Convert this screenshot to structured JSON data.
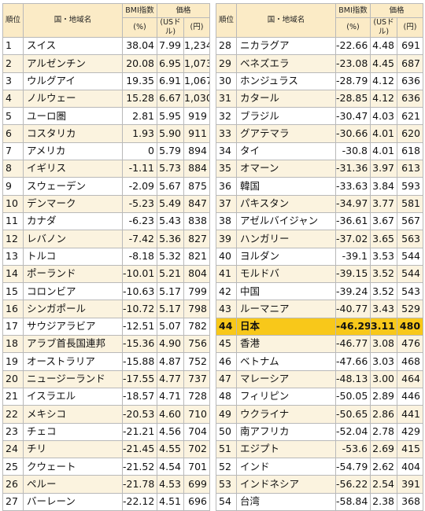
{
  "header": {
    "rank": "順位",
    "country": "国・地域名",
    "bmi": "BMI指数",
    "bmi_unit": "(%)",
    "price": "価格",
    "usd_unit": "(USドル)",
    "yen_unit": "(円)"
  },
  "rows_left": [
    {
      "rank": "1",
      "country": "スイス",
      "bmi": "38.04",
      "usd": "7.99",
      "yen": "1,234"
    },
    {
      "rank": "2",
      "country": "アルゼンチン",
      "bmi": "20.08",
      "usd": "6.95",
      "yen": "1,073"
    },
    {
      "rank": "3",
      "country": "ウルグアイ",
      "bmi": "19.35",
      "usd": "6.91",
      "yen": "1,067"
    },
    {
      "rank": "4",
      "country": "ノルウェー",
      "bmi": "15.28",
      "usd": "6.67",
      "yen": "1,030"
    },
    {
      "rank": "5",
      "country": "ユーロ圏",
      "bmi": "2.81",
      "usd": "5.95",
      "yen": "919"
    },
    {
      "rank": "6",
      "country": "コスタリカ",
      "bmi": "1.93",
      "usd": "5.90",
      "yen": "911"
    },
    {
      "rank": "7",
      "country": "アメリカ",
      "bmi": "0",
      "usd": "5.79",
      "yen": "894"
    },
    {
      "rank": "8",
      "country": "イギリス",
      "bmi": "-1.11",
      "usd": "5.73",
      "yen": "884"
    },
    {
      "rank": "9",
      "country": "スウェーデン",
      "bmi": "-2.09",
      "usd": "5.67",
      "yen": "875"
    },
    {
      "rank": "10",
      "country": "デンマーク",
      "bmi": "-5.23",
      "usd": "5.49",
      "yen": "847"
    },
    {
      "rank": "11",
      "country": "カナダ",
      "bmi": "-6.23",
      "usd": "5.43",
      "yen": "838"
    },
    {
      "rank": "12",
      "country": "レバノン",
      "bmi": "-7.42",
      "usd": "5.36",
      "yen": "827"
    },
    {
      "rank": "13",
      "country": "トルコ",
      "bmi": "-8.18",
      "usd": "5.32",
      "yen": "821"
    },
    {
      "rank": "14",
      "country": "ポーランド",
      "bmi": "-10.01",
      "usd": "5.21",
      "yen": "804"
    },
    {
      "rank": "15",
      "country": "コロンビア",
      "bmi": "-10.63",
      "usd": "5.17",
      "yen": "799"
    },
    {
      "rank": "16",
      "country": "シンガポール",
      "bmi": "-10.72",
      "usd": "5.17",
      "yen": "798"
    },
    {
      "rank": "17",
      "country": "サウジアラビア",
      "bmi": "-12.51",
      "usd": "5.07",
      "yen": "782"
    },
    {
      "rank": "18",
      "country": "アラブ首長国連邦",
      "bmi": "-15.36",
      "usd": "4.90",
      "yen": "756"
    },
    {
      "rank": "19",
      "country": "オーストラリア",
      "bmi": "-15.88",
      "usd": "4.87",
      "yen": "752"
    },
    {
      "rank": "20",
      "country": "ニュージーランド",
      "bmi": "-17.55",
      "usd": "4.77",
      "yen": "737"
    },
    {
      "rank": "21",
      "country": "イスラエル",
      "bmi": "-18.57",
      "usd": "4.71",
      "yen": "728"
    },
    {
      "rank": "22",
      "country": "メキシコ",
      "bmi": "-20.53",
      "usd": "4.60",
      "yen": "710"
    },
    {
      "rank": "23",
      "country": "チェコ",
      "bmi": "-21.21",
      "usd": "4.56",
      "yen": "704"
    },
    {
      "rank": "24",
      "country": "チリ",
      "bmi": "-21.45",
      "usd": "4.55",
      "yen": "702"
    },
    {
      "rank": "25",
      "country": "クウェート",
      "bmi": "-21.52",
      "usd": "4.54",
      "yen": "701"
    },
    {
      "rank": "26",
      "country": "ペルー",
      "bmi": "-21.78",
      "usd": "4.53",
      "yen": "699"
    },
    {
      "rank": "27",
      "country": "バーレーン",
      "bmi": "-22.12",
      "usd": "4.51",
      "yen": "696"
    }
  ],
  "rows_right": [
    {
      "rank": "28",
      "country": "ニカラグア",
      "bmi": "-22.66",
      "usd": "4.48",
      "yen": "691"
    },
    {
      "rank": "29",
      "country": "ベネズエラ",
      "bmi": "-23.08",
      "usd": "4.45",
      "yen": "687"
    },
    {
      "rank": "30",
      "country": "ホンジュラス",
      "bmi": "-28.79",
      "usd": "4.12",
      "yen": "636"
    },
    {
      "rank": "31",
      "country": "カタール",
      "bmi": "-28.85",
      "usd": "4.12",
      "yen": "636"
    },
    {
      "rank": "32",
      "country": "ブラジル",
      "bmi": "-30.47",
      "usd": "4.03",
      "yen": "621"
    },
    {
      "rank": "33",
      "country": "グアテマラ",
      "bmi": "-30.66",
      "usd": "4.01",
      "yen": "620"
    },
    {
      "rank": "34",
      "country": "タイ",
      "bmi": "-30.8",
      "usd": "4.01",
      "yen": "618"
    },
    {
      "rank": "35",
      "country": "オマーン",
      "bmi": "-31.36",
      "usd": "3.97",
      "yen": "613"
    },
    {
      "rank": "36",
      "country": "韓国",
      "bmi": "-33.63",
      "usd": "3.84",
      "yen": "593"
    },
    {
      "rank": "37",
      "country": "パキスタン",
      "bmi": "-34.97",
      "usd": "3.77",
      "yen": "581"
    },
    {
      "rank": "38",
      "country": "アゼルバイジャン",
      "bmi": "-36.61",
      "usd": "3.67",
      "yen": "567"
    },
    {
      "rank": "39",
      "country": "ハンガリー",
      "bmi": "-37.02",
      "usd": "3.65",
      "yen": "563"
    },
    {
      "rank": "40",
      "country": "ヨルダン",
      "bmi": "-39.1",
      "usd": "3.53",
      "yen": "544"
    },
    {
      "rank": "41",
      "country": "モルドバ",
      "bmi": "-39.15",
      "usd": "3.52",
      "yen": "544"
    },
    {
      "rank": "42",
      "country": "中国",
      "bmi": "-39.24",
      "usd": "3.52",
      "yen": "543"
    },
    {
      "rank": "43",
      "country": "ルーマニア",
      "bmi": "-40.77",
      "usd": "3.43",
      "yen": "529"
    },
    {
      "rank": "44",
      "country": "日本",
      "bmi": "-46.29",
      "usd": "3.11",
      "yen": "480",
      "highlight": true
    },
    {
      "rank": "45",
      "country": "香港",
      "bmi": "-46.77",
      "usd": "3.08",
      "yen": "476"
    },
    {
      "rank": "46",
      "country": "ベトナム",
      "bmi": "-47.66",
      "usd": "3.03",
      "yen": "468"
    },
    {
      "rank": "47",
      "country": "マレーシア",
      "bmi": "-48.13",
      "usd": "3.00",
      "yen": "464"
    },
    {
      "rank": "48",
      "country": "フィリピン",
      "bmi": "-50.05",
      "usd": "2.89",
      "yen": "446"
    },
    {
      "rank": "49",
      "country": "ウクライナ",
      "bmi": "-50.65",
      "usd": "2.86",
      "yen": "441"
    },
    {
      "rank": "50",
      "country": "南アフリカ",
      "bmi": "-52.04",
      "usd": "2.78",
      "yen": "429"
    },
    {
      "rank": "51",
      "country": "エジプト",
      "bmi": "-53.6",
      "usd": "2.69",
      "yen": "415"
    },
    {
      "rank": "52",
      "country": "インド",
      "bmi": "-54.79",
      "usd": "2.62",
      "yen": "404"
    },
    {
      "rank": "53",
      "country": "インドネシア",
      "bmi": "-56.22",
      "usd": "2.54",
      "yen": "391"
    },
    {
      "rank": "54",
      "country": "台湾",
      "bmi": "-58.84",
      "usd": "2.38",
      "yen": "368"
    }
  ],
  "colors": {
    "header_bg": "#fbebc6",
    "stripe_bg": "#fbf3df",
    "highlight_bg": "#f8c81a"
  }
}
